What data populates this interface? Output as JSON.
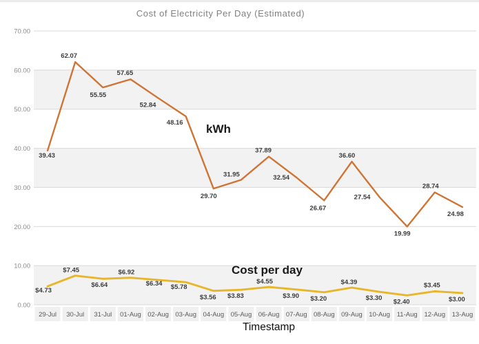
{
  "chart_data": {
    "type": "line",
    "title": "Cost of Electricity Per Day (Estimated)",
    "xlabel": "Timestamp",
    "ylabel": "",
    "ylim": [
      0,
      70
    ],
    "ytick_interval": 10,
    "ytick_labels": [
      "70.00",
      "60.00",
      "50.00",
      "40.00",
      "30.00",
      "20.00",
      "10.00",
      "0.00"
    ],
    "grid": true,
    "legend": "inline text annotations next to each line",
    "gray_bands": [
      [
        50,
        60
      ],
      [
        30,
        40
      ],
      [
        0,
        10
      ]
    ],
    "categories": [
      "29-Jul",
      "30-Jul",
      "31-Jul",
      "01-Aug",
      "02-Aug",
      "03-Aug",
      "04-Aug",
      "05-Aug",
      "06-Aug",
      "07-Aug",
      "08-Aug",
      "09-Aug",
      "10-Aug",
      "11-Aug",
      "12-Aug",
      "13-Aug"
    ],
    "series": [
      {
        "name": "kWh",
        "color": "#CE7434",
        "values": [
          39.43,
          62.07,
          55.55,
          57.65,
          52.84,
          48.16,
          29.7,
          31.95,
          37.89,
          32.54,
          26.67,
          36.6,
          27.54,
          19.99,
          28.74,
          24.98
        ],
        "point_labels": [
          "39.43",
          "62.07",
          "55.55",
          "57.65",
          "52.84",
          "48.16",
          "29.70",
          "31.95",
          "37.89",
          "32.54",
          "26.67",
          "36.60",
          "27.54",
          "19.99",
          "28.74",
          "24.98"
        ]
      },
      {
        "name": "Cost per day",
        "color": "#E8B62B",
        "values": [
          4.73,
          7.45,
          6.64,
          6.92,
          6.34,
          5.78,
          3.56,
          3.83,
          4.55,
          3.9,
          3.2,
          4.39,
          3.3,
          2.4,
          3.45,
          3.0
        ],
        "point_labels": [
          "$4.73",
          "$7.45",
          "$6.64",
          "$6.92",
          "$6.34",
          "$5.78",
          "$3.56",
          "$3.83",
          "$4.55",
          "$3.90",
          "$3.20",
          "$4.39",
          "$3.30",
          "$2.40",
          "$3.45",
          "$3.00"
        ]
      }
    ]
  },
  "colors": {
    "gridline": "#D9D9D9",
    "band_gray": "#F2F2F2",
    "axis_tick_text": "#8C8C8C",
    "category_text": "#595959",
    "category_cell_bg": "#F0F0F0",
    "point_label_text": "#3C3C3C",
    "title_text": "#808080"
  }
}
